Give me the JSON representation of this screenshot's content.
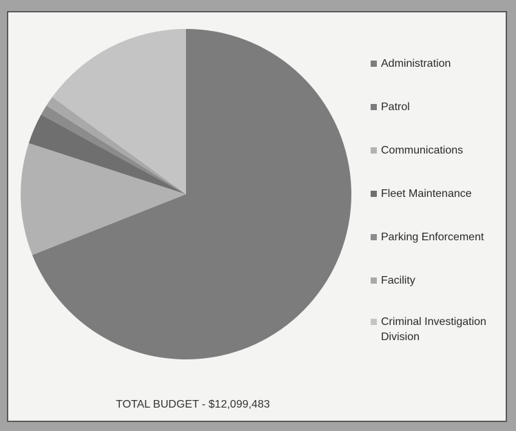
{
  "chart_data": {
    "type": "pie",
    "categories": [
      "Administration",
      "Patrol",
      "Communications",
      "Fleet Maintenance",
      "Parking Enforcement",
      "Facility",
      "Criminal Investigation Division"
    ],
    "values": [
      0,
      69,
      11,
      3,
      1,
      1,
      15
    ],
    "colors": [
      "#7d7d7d",
      "#7c7c7c",
      "#b2b2b2",
      "#6f6f6f",
      "#8c8c8c",
      "#a9a9a9",
      "#c4c4c4"
    ],
    "legend_position": "right",
    "total_label": "TOTAL BUDGET  -  $12,099,483"
  }
}
